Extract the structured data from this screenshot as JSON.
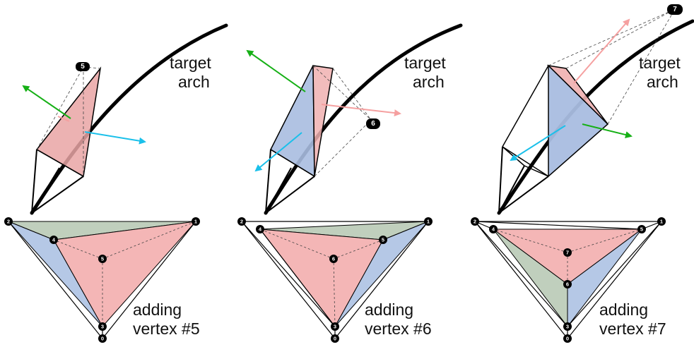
{
  "panels": [
    {
      "id": "panel-5",
      "target_label_line1": "target",
      "target_label_line2": "arch",
      "caption_line1": "adding",
      "caption_line2": "vertex #5",
      "new_vertex": "5"
    },
    {
      "id": "panel-6",
      "target_label_line1": "target",
      "target_label_line2": "arch",
      "caption_line1": "adding",
      "caption_line2": "vertex #6",
      "new_vertex": "6"
    },
    {
      "id": "panel-7",
      "target_label_line1": "target",
      "target_label_line2": "arch",
      "caption_line1": "adding",
      "caption_line2": "vertex #7",
      "new_vertex": "7"
    }
  ],
  "vertex_labels": [
    "0",
    "1",
    "2",
    "3",
    "4",
    "5",
    "6",
    "7"
  ],
  "colors": {
    "red_face": "#f4b6b6",
    "blue_face": "#b5c8e6",
    "green_face": "#c0cfbd",
    "arrow_green": "#16b016",
    "arrow_cyan": "#1ac0ea",
    "arrow_pink": "#f5a0a0",
    "edge": "#000000"
  }
}
